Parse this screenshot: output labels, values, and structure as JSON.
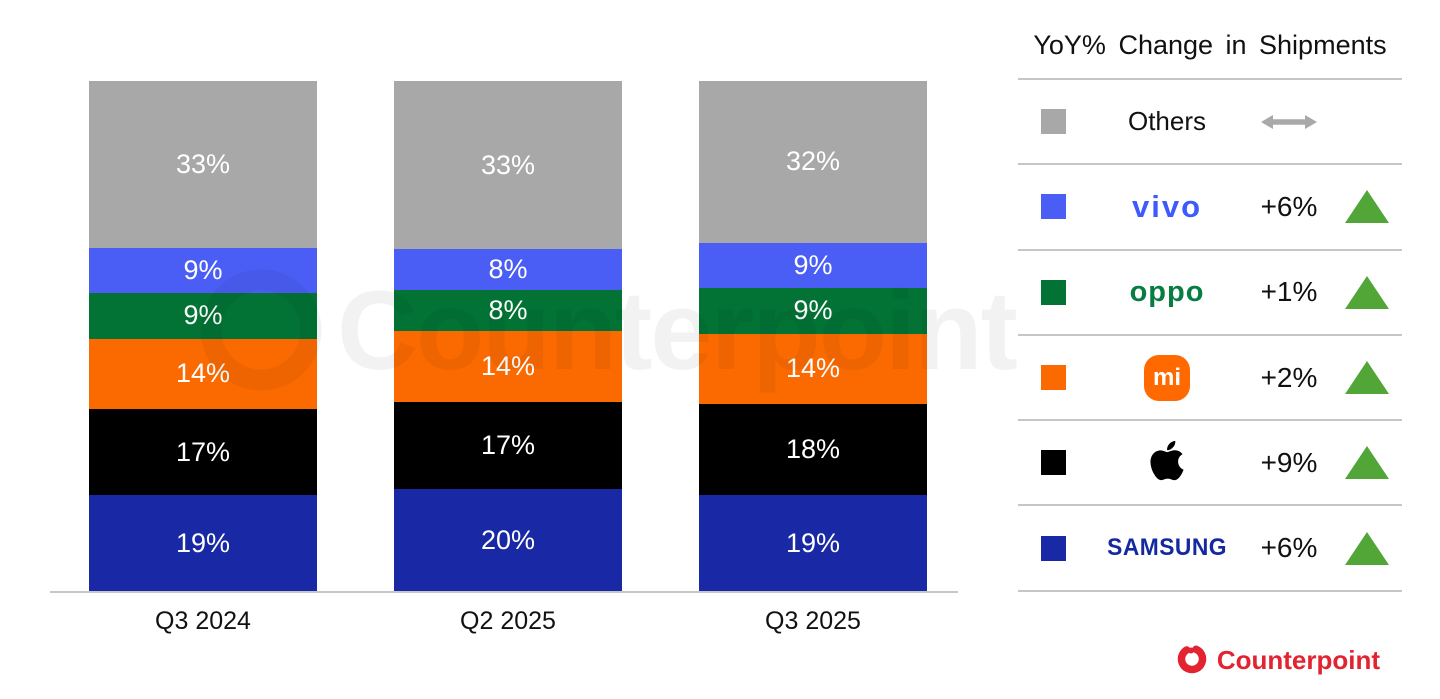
{
  "chart_data": {
    "type": "bar",
    "stacked": true,
    "unit": "%",
    "title": "",
    "categories": [
      "Q3 2024",
      "Q2 2025",
      "Q3 2025"
    ],
    "series": [
      {
        "name": "Samsung",
        "color": "#1928A5",
        "values": [
          19,
          20,
          19
        ]
      },
      {
        "name": "Apple",
        "color": "#000000",
        "values": [
          17,
          17,
          18
        ]
      },
      {
        "name": "Xiaomi",
        "color": "#FB6A00",
        "values": [
          14,
          14,
          14
        ]
      },
      {
        "name": "OPPO",
        "color": "#027335",
        "values": [
          9,
          8,
          9
        ]
      },
      {
        "name": "vivo",
        "color": "#4A5EF5",
        "values": [
          9,
          8,
          9
        ]
      },
      {
        "name": "Others",
        "color": "#A8A8A8",
        "values": [
          33,
          33,
          32
        ]
      }
    ],
    "legend_position": "right",
    "grid": false,
    "value_labels": "inside-white"
  },
  "legend": {
    "title": "YoY% Change in Shipments",
    "rows": [
      {
        "brand": "Others",
        "logo_text": "Others",
        "change": "",
        "direction": "flat"
      },
      {
        "brand": "vivo",
        "logo_text": "vivo",
        "change": "+6%",
        "direction": "up"
      },
      {
        "brand": "OPPO",
        "logo_text": "oppo",
        "change": "+1%",
        "direction": "up"
      },
      {
        "brand": "Xiaomi",
        "logo_text": "mi",
        "change": "+2%",
        "direction": "up"
      },
      {
        "brand": "Apple",
        "logo_text": "",
        "change": "+9%",
        "direction": "up"
      },
      {
        "brand": "Samsung",
        "logo_text": "SAMSUNG",
        "change": "+6%",
        "direction": "up"
      }
    ]
  },
  "watermark": "Counterpoint",
  "footer": {
    "brand": "Counterpoint"
  },
  "colors": {
    "others_gray": "#A8A8A8",
    "vivo_blue": "#4A5EF5",
    "oppo_green": "#027335",
    "xiaomi_orange": "#FB6A00",
    "apple_black": "#000000",
    "samsung_navy": "#1928A5",
    "vivo_logo": "#3D5AFE",
    "oppo_logo": "#077D41",
    "samsung_logo": "#1428A0",
    "mi_logo_bg": "#FF6900",
    "up_green": "#52A637",
    "flat_gray": "#A9A9A9",
    "counterpoint_red": "#E32330"
  }
}
